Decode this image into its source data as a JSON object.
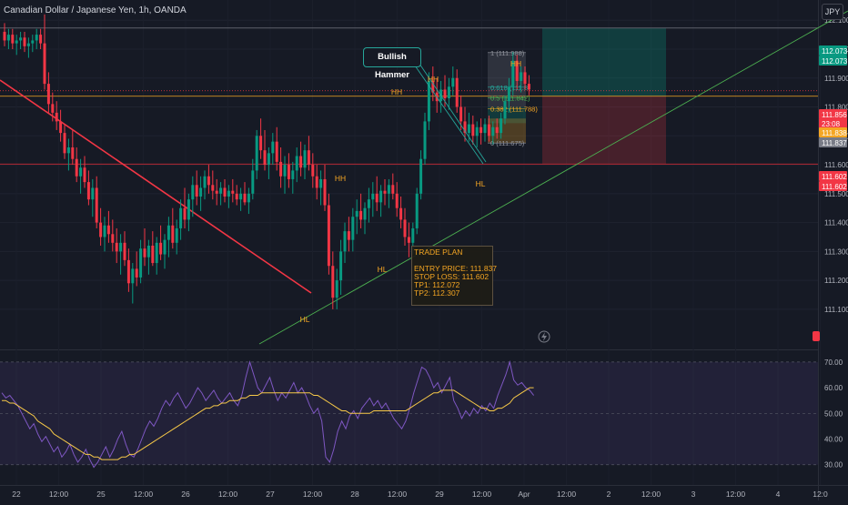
{
  "header": {
    "title": "Canadian Dollar / Japanese Yen, 1h, OANDA",
    "currency": "JPY"
  },
  "annotations": {
    "bullish_hammer": "Bullish Hammer",
    "swing_labels": [
      {
        "text": "HH",
        "kind": "HH"
      },
      {
        "text": "HH",
        "kind": "HH"
      },
      {
        "text": "HH",
        "kind": "HH"
      },
      {
        "text": "HH",
        "kind": "HH"
      },
      {
        "text": "HL",
        "kind": "HL"
      },
      {
        "text": "HL",
        "kind": "HL"
      },
      {
        "text": "HL",
        "kind": "HL"
      }
    ],
    "fib_labels": [
      "1 (111.988)",
      "0.618 (111.8",
      "0.5 (111.842)",
      "0.382 (111.788)",
      "0 (111.675)"
    ]
  },
  "trade_plan": {
    "title": "TRADE PLAN",
    "entry": "ENTRY PRICE:  111.837",
    "stop": "STOP LOSS:  111.602",
    "tp1": "TP1:  112.072",
    "tp2": "TP2:  112.307"
  },
  "chart_data": {
    "type": "candlestick",
    "price_axis": {
      "range": [
        110.98,
        112.17
      ],
      "ticks": [
        111.1,
        111.2,
        111.3,
        111.4,
        111.5,
        111.6,
        111.7,
        111.8,
        111.9,
        112.0,
        112.1
      ],
      "tick_labels": [
        "111.100",
        "111.200",
        "111.300",
        "111.400",
        "111.500",
        "111.600",
        "111.700",
        "111.800",
        "111.900",
        "112.000",
        "112.100"
      ]
    },
    "time_axis": {
      "labels": [
        "22",
        "12:00",
        "25",
        "12:00",
        "26",
        "12:00",
        "27",
        "12:00",
        "28",
        "12:00",
        "29",
        "12:00",
        "Apr",
        "12:00",
        "2",
        "12:00",
        "3",
        "12:00",
        "4",
        "12:0"
      ]
    },
    "price_badges": [
      {
        "text": "112.073",
        "color": "#089981"
      },
      {
        "text": "112.073",
        "color": "#089981"
      },
      {
        "text": "111.856",
        "color": "#f23645"
      },
      {
        "text": "23:08",
        "color": "#f23645"
      },
      {
        "text": "111.838",
        "color": "#f5a623"
      },
      {
        "text": "111.837",
        "color": "#787b86"
      },
      {
        "text": "111.602",
        "color": "#f23645"
      },
      {
        "text": "111.602",
        "color": "#f23645"
      }
    ],
    "levels": {
      "upper_line": 112.073,
      "current": 111.856,
      "entry": 111.837,
      "stop": 111.602,
      "tp1": 112.072,
      "tp2": 112.307
    },
    "fibonacci": {
      "high": 111.988,
      "low": 111.675
    },
    "candles_ohlc": [
      [
        112.06,
        112.09,
        112.01,
        112.03
      ],
      [
        112.03,
        112.07,
        112.0,
        112.05
      ],
      [
        112.05,
        112.07,
        112.0,
        112.02
      ],
      [
        112.02,
        112.05,
        111.98,
        112.03
      ],
      [
        112.03,
        112.06,
        112.0,
        112.04
      ],
      [
        112.04,
        112.06,
        111.99,
        112.01
      ],
      [
        112.01,
        112.04,
        111.97,
        112.02
      ],
      [
        112.02,
        112.05,
        111.99,
        112.03
      ],
      [
        112.03,
        112.07,
        112.0,
        112.05
      ],
      [
        112.05,
        112.07,
        112.0,
        112.02
      ],
      [
        112.02,
        112.12,
        111.86,
        111.88
      ],
      [
        111.88,
        111.92,
        111.78,
        111.81
      ],
      [
        111.81,
        111.85,
        111.75,
        111.78
      ],
      [
        111.78,
        111.82,
        111.72,
        111.75
      ],
      [
        111.75,
        111.79,
        111.68,
        111.71
      ],
      [
        111.71,
        111.74,
        111.62,
        111.64
      ],
      [
        111.64,
        111.69,
        111.58,
        111.66
      ],
      [
        111.66,
        111.72,
        111.6,
        111.62
      ],
      [
        111.62,
        111.66,
        111.54,
        111.56
      ],
      [
        111.56,
        111.62,
        111.5,
        111.59
      ],
      [
        111.59,
        111.63,
        111.52,
        111.54
      ],
      [
        111.54,
        111.58,
        111.46,
        111.48
      ],
      [
        111.48,
        111.55,
        111.42,
        111.52
      ],
      [
        111.52,
        111.56,
        111.38,
        111.4
      ],
      [
        111.4,
        111.45,
        111.32,
        111.35
      ],
      [
        111.35,
        111.42,
        111.3,
        111.39
      ],
      [
        111.39,
        111.44,
        111.33,
        111.36
      ],
      [
        111.36,
        111.41,
        111.3,
        111.33
      ],
      [
        111.33,
        111.38,
        111.26,
        111.3
      ],
      [
        111.3,
        111.36,
        111.22,
        111.33
      ],
      [
        111.33,
        111.37,
        111.25,
        111.27
      ],
      [
        111.27,
        111.31,
        111.16,
        111.19
      ],
      [
        111.19,
        111.26,
        111.12,
        111.24
      ],
      [
        111.24,
        111.3,
        111.18,
        111.21
      ],
      [
        111.21,
        111.34,
        111.19,
        111.31
      ],
      [
        111.31,
        111.38,
        111.25,
        111.28
      ],
      [
        111.28,
        111.34,
        111.22,
        111.32
      ],
      [
        111.32,
        111.37,
        111.25,
        111.26
      ],
      [
        111.26,
        111.35,
        111.22,
        111.33
      ],
      [
        111.33,
        111.39,
        111.27,
        111.29
      ],
      [
        111.29,
        111.36,
        111.24,
        111.34
      ],
      [
        111.34,
        111.42,
        111.28,
        111.39
      ],
      [
        111.39,
        111.45,
        111.31,
        111.33
      ],
      [
        111.33,
        111.41,
        111.29,
        111.38
      ],
      [
        111.38,
        111.48,
        111.34,
        111.45
      ],
      [
        111.45,
        111.52,
        111.38,
        111.41
      ],
      [
        111.41,
        111.5,
        111.37,
        111.48
      ],
      [
        111.48,
        111.56,
        111.42,
        111.53
      ],
      [
        111.53,
        111.58,
        111.46,
        111.49
      ],
      [
        111.49,
        111.56,
        111.44,
        111.52
      ],
      [
        111.52,
        111.58,
        111.48,
        111.56
      ],
      [
        111.56,
        111.6,
        111.5,
        111.53
      ],
      [
        111.53,
        111.58,
        111.48,
        111.51
      ],
      [
        111.51,
        111.55,
        111.46,
        111.5
      ],
      [
        111.5,
        111.54,
        111.46,
        111.52
      ],
      [
        111.52,
        111.55,
        111.47,
        111.49
      ],
      [
        111.49,
        111.53,
        111.45,
        111.51
      ],
      [
        111.51,
        111.55,
        111.47,
        111.5
      ],
      [
        111.5,
        111.53,
        111.46,
        111.48
      ],
      [
        111.48,
        111.52,
        111.44,
        111.5
      ],
      [
        111.5,
        111.54,
        111.46,
        111.47
      ],
      [
        111.47,
        111.52,
        111.43,
        111.5
      ],
      [
        111.5,
        111.62,
        111.48,
        111.58
      ],
      [
        111.58,
        111.72,
        111.55,
        111.7
      ],
      [
        111.7,
        111.76,
        111.62,
        111.65
      ],
      [
        111.65,
        111.72,
        111.58,
        111.6
      ],
      [
        111.6,
        111.66,
        111.55,
        111.64
      ],
      [
        111.64,
        111.71,
        111.6,
        111.68
      ],
      [
        111.68,
        111.73,
        111.58,
        111.61
      ],
      [
        111.61,
        111.66,
        111.52,
        111.56
      ],
      [
        111.56,
        111.63,
        111.5,
        111.6
      ],
      [
        111.6,
        111.64,
        111.52,
        111.55
      ],
      [
        111.55,
        111.61,
        111.5,
        111.58
      ],
      [
        111.58,
        111.66,
        111.54,
        111.63
      ],
      [
        111.63,
        111.68,
        111.56,
        111.59
      ],
      [
        111.59,
        111.67,
        111.55,
        111.65
      ],
      [
        111.65,
        111.7,
        111.58,
        111.6
      ],
      [
        111.6,
        111.64,
        111.52,
        111.56
      ],
      [
        111.56,
        111.6,
        111.48,
        111.52
      ],
      [
        111.52,
        111.58,
        111.46,
        111.55
      ],
      [
        111.55,
        111.6,
        111.44,
        111.46
      ],
      [
        111.46,
        111.5,
        111.22,
        111.25
      ],
      [
        111.25,
        111.3,
        111.1,
        111.14
      ],
      [
        111.14,
        111.24,
        111.1,
        111.2
      ],
      [
        111.2,
        111.34,
        111.15,
        111.3
      ],
      [
        111.3,
        111.4,
        111.26,
        111.37
      ],
      [
        111.37,
        111.42,
        111.3,
        111.34
      ],
      [
        111.34,
        111.45,
        111.3,
        111.42
      ],
      [
        111.42,
        111.48,
        111.36,
        111.44
      ],
      [
        111.44,
        111.5,
        111.38,
        111.41
      ],
      [
        111.41,
        111.47,
        111.36,
        111.45
      ],
      [
        111.45,
        111.52,
        111.4,
        111.48
      ],
      [
        111.48,
        111.54,
        111.42,
        111.5
      ],
      [
        111.5,
        111.56,
        111.44,
        111.47
      ],
      [
        111.47,
        111.53,
        111.42,
        111.51
      ],
      [
        111.51,
        111.55,
        111.46,
        111.5
      ],
      [
        111.5,
        111.55,
        111.45,
        111.53
      ],
      [
        111.53,
        111.57,
        111.48,
        111.5
      ],
      [
        111.5,
        111.54,
        111.42,
        111.45
      ],
      [
        111.45,
        111.49,
        111.38,
        111.41
      ],
      [
        111.41,
        111.45,
        111.32,
        111.35
      ],
      [
        111.35,
        111.4,
        111.28,
        111.33
      ],
      [
        111.33,
        111.4,
        111.29,
        111.38
      ],
      [
        111.38,
        111.52,
        111.36,
        111.5
      ],
      [
        111.5,
        111.65,
        111.48,
        111.62
      ],
      [
        111.62,
        111.78,
        111.6,
        111.75
      ],
      [
        111.75,
        111.92,
        111.72,
        111.89
      ],
      [
        111.89,
        111.94,
        111.82,
        111.85
      ],
      [
        111.85,
        111.9,
        111.78,
        111.82
      ],
      [
        111.82,
        111.89,
        111.78,
        111.86
      ],
      [
        111.86,
        111.91,
        111.8,
        111.83
      ],
      [
        111.83,
        111.9,
        111.79,
        111.87
      ],
      [
        111.87,
        111.94,
        111.84,
        111.9
      ],
      [
        111.9,
        111.93,
        111.78,
        111.8
      ],
      [
        111.8,
        111.84,
        111.72,
        111.75
      ],
      [
        111.75,
        111.8,
        111.68,
        111.71
      ],
      [
        111.71,
        111.78,
        111.68,
        111.74
      ],
      [
        111.74,
        111.77,
        111.67,
        111.7
      ],
      [
        111.7,
        111.75,
        111.66,
        111.73
      ],
      [
        111.73,
        111.76,
        111.67,
        111.71
      ],
      [
        111.71,
        111.76,
        111.68,
        111.74
      ],
      [
        111.74,
        111.77,
        111.68,
        111.7
      ],
      [
        111.7,
        111.75,
        111.67,
        111.73
      ],
      [
        111.73,
        111.76,
        111.69,
        111.71
      ],
      [
        111.71,
        111.78,
        111.69,
        111.76
      ],
      [
        111.76,
        111.84,
        111.74,
        111.82
      ],
      [
        111.82,
        111.9,
        111.78,
        111.87
      ],
      [
        111.87,
        111.99,
        111.84,
        111.96
      ],
      [
        111.96,
        111.98,
        111.86,
        111.89
      ],
      [
        111.89,
        111.94,
        111.85,
        111.92
      ],
      [
        111.92,
        111.94,
        111.86,
        111.88
      ],
      [
        111.88,
        111.91,
        111.84,
        111.86
      ]
    ],
    "rsi": {
      "axis": {
        "ticks": [
          30,
          40,
          50,
          60,
          70
        ],
        "tick_labels": [
          "30.00",
          "40.00",
          "50.00",
          "60.00",
          "70.00"
        ],
        "range": [
          26,
          73.5
        ],
        "band": [
          30,
          70
        ]
      },
      "values": [
        58,
        56,
        57,
        55,
        53,
        50,
        47,
        44,
        46,
        42,
        39,
        41,
        38,
        35,
        37,
        33,
        35,
        38,
        34,
        31,
        33,
        36,
        32,
        29,
        31,
        34,
        37,
        33,
        36,
        40,
        43,
        38,
        34,
        33,
        36,
        40,
        44,
        47,
        45,
        48,
        52,
        55,
        53,
        56,
        58,
        55,
        52,
        54,
        57,
        60,
        58,
        55,
        57,
        59,
        56,
        54,
        56,
        58,
        55,
        53,
        57,
        64,
        70,
        65,
        60,
        58,
        61,
        64,
        59,
        55,
        58,
        56,
        59,
        62,
        58,
        60,
        57,
        53,
        50,
        52,
        47,
        33,
        31,
        36,
        43,
        47,
        44,
        49,
        51,
        48,
        52,
        54,
        56,
        53,
        55,
        52,
        54,
        51,
        48,
        46,
        44,
        47,
        52,
        58,
        63,
        68,
        67,
        64,
        60,
        62,
        58,
        61,
        64,
        55,
        52,
        48,
        51,
        49,
        52,
        50,
        53,
        51,
        54,
        52,
        57,
        61,
        65,
        70,
        63,
        61,
        62,
        60,
        59,
        57
      ],
      "ma": [
        55,
        55,
        54,
        54,
        53,
        52,
        51,
        50,
        49,
        47,
        46,
        45,
        44,
        42,
        41,
        40,
        39,
        38,
        37,
        36,
        35,
        34,
        34,
        33,
        33,
        32,
        32,
        32,
        32,
        32,
        33,
        33,
        34,
        34,
        35,
        36,
        37,
        38,
        39,
        40,
        41,
        42,
        43,
        44,
        45,
        46,
        47,
        48,
        49,
        50,
        51,
        52,
        52,
        53,
        53,
        54,
        54,
        55,
        55,
        55,
        56,
        56,
        57,
        57,
        57,
        58,
        58,
        58,
        58,
        58,
        58,
        58,
        58,
        58,
        58,
        58,
        58,
        58,
        57,
        57,
        56,
        55,
        54,
        53,
        52,
        51,
        51,
        50,
        50,
        50,
        50,
        50,
        50,
        51,
        51,
        51,
        51,
        51,
        51,
        51,
        51,
        51,
        52,
        53,
        54,
        55,
        56,
        57,
        58,
        58,
        59,
        59,
        59,
        59,
        58,
        57,
        56,
        55,
        54,
        53,
        52,
        52,
        51,
        51,
        52,
        52,
        53,
        54,
        56,
        57,
        58,
        59,
        60,
        60
      ]
    }
  }
}
